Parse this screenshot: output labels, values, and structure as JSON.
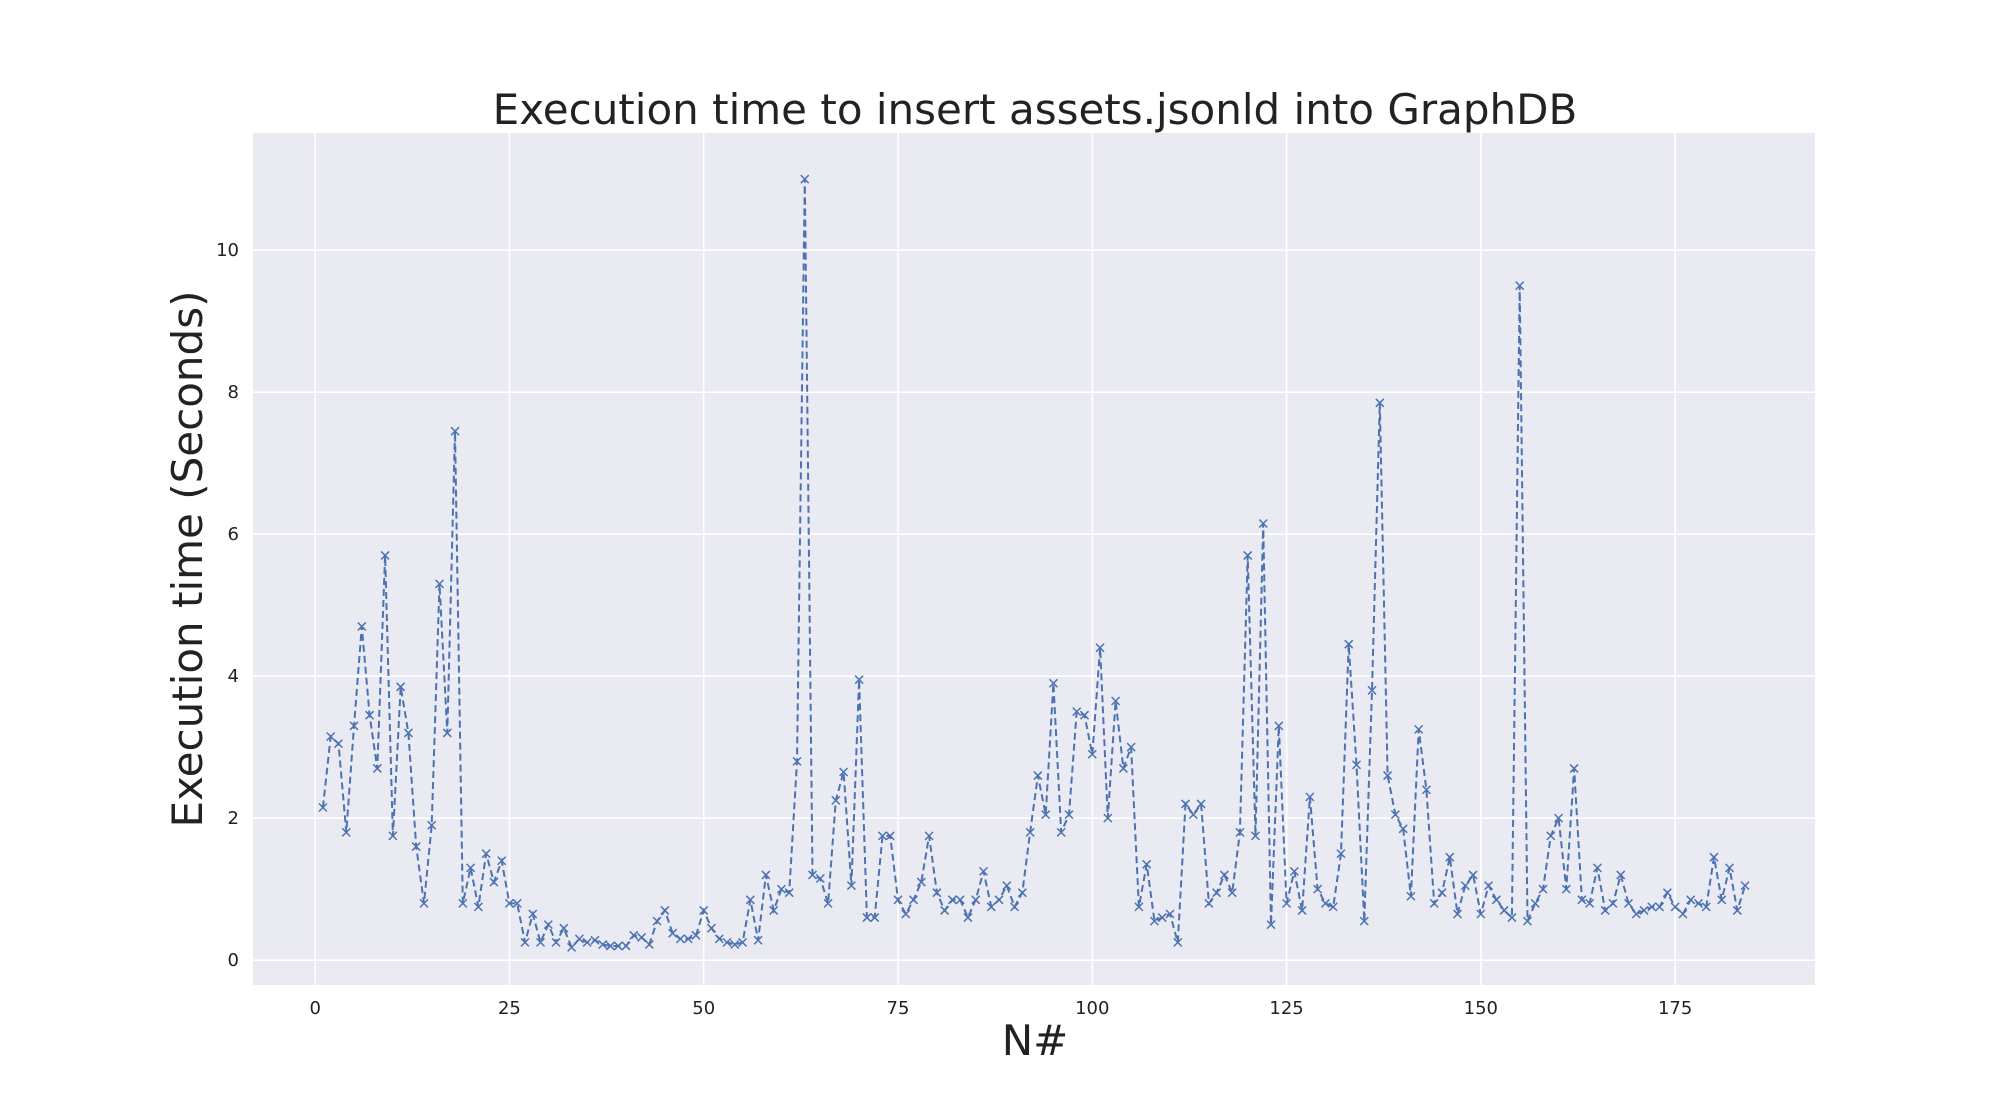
{
  "chart_data": {
    "type": "line",
    "title": "Execution time to insert assets.jsonld into GraphDB",
    "xlabel": "N#",
    "ylabel": "Execution time (Seconds)",
    "xlim": [
      -8,
      193
    ],
    "ylim": [
      -0.35,
      11.65
    ],
    "xticks": [
      0,
      25,
      50,
      75,
      100,
      125,
      150,
      175
    ],
    "yticks": [
      0,
      2,
      4,
      6,
      8,
      10
    ],
    "grid": true,
    "legend": "none",
    "line_style": "dashed",
    "marker": "x",
    "colors": {
      "series": "#4c72b0",
      "plot_background": "#eaeaf2",
      "grid": "#ffffff"
    },
    "series": [
      {
        "x": [
          1,
          2,
          3,
          4,
          5,
          6,
          7,
          8,
          9,
          10,
          11,
          12,
          13,
          14,
          15,
          16,
          17,
          18,
          19,
          20,
          21,
          22,
          23,
          24,
          25,
          26,
          27,
          28,
          29,
          30,
          31,
          32,
          33,
          34,
          35,
          36,
          37,
          38,
          39,
          40,
          41,
          42,
          43,
          44,
          45,
          46,
          47,
          48,
          49,
          50,
          51,
          52,
          53,
          54,
          55,
          56,
          57,
          58,
          59,
          60,
          61,
          62,
          63,
          64,
          65,
          66,
          67,
          68,
          69,
          70,
          71,
          72,
          73,
          74,
          75,
          76,
          77,
          78,
          79,
          80,
          81,
          82,
          83,
          84,
          85,
          86,
          87,
          88,
          89,
          90,
          91,
          92,
          93,
          94,
          95,
          96,
          97,
          98,
          99,
          100,
          101,
          102,
          103,
          104,
          105,
          106,
          107,
          108,
          109,
          110,
          111,
          112,
          113,
          114,
          115,
          116,
          117,
          118,
          119,
          120,
          121,
          122,
          123,
          124,
          125,
          126,
          127,
          128,
          129,
          130,
          131,
          132,
          133,
          134,
          135,
          136,
          137,
          138,
          139,
          140,
          141,
          142,
          143,
          144,
          145,
          146,
          147,
          148,
          149,
          150,
          151,
          152,
          153,
          154,
          155,
          156,
          157,
          158,
          159,
          160,
          161,
          162,
          163,
          164,
          165,
          166,
          167,
          168,
          169,
          170,
          171,
          172,
          173,
          174,
          175,
          176,
          177,
          178,
          179,
          180,
          181,
          182,
          183,
          184
        ],
        "y": [
          2.15,
          3.15,
          3.05,
          1.8,
          3.3,
          4.7,
          3.45,
          2.7,
          5.7,
          1.75,
          3.85,
          3.2,
          1.6,
          0.8,
          1.9,
          5.3,
          3.2,
          7.45,
          0.8,
          1.3,
          0.75,
          1.5,
          1.1,
          1.4,
          0.8,
          0.8,
          0.25,
          0.65,
          0.25,
          0.5,
          0.25,
          0.45,
          0.18,
          0.3,
          0.25,
          0.28,
          0.22,
          0.2,
          0.2,
          0.2,
          0.35,
          0.32,
          0.22,
          0.55,
          0.7,
          0.38,
          0.3,
          0.3,
          0.35,
          0.7,
          0.45,
          0.3,
          0.25,
          0.22,
          0.25,
          0.85,
          0.28,
          1.2,
          0.7,
          1.0,
          0.95,
          2.8,
          11.0,
          1.2,
          1.15,
          0.8,
          2.25,
          2.65,
          1.05,
          3.95,
          0.6,
          0.6,
          1.75,
          1.75,
          0.85,
          0.65,
          0.85,
          1.1,
          1.75,
          0.95,
          0.7,
          0.85,
          0.85,
          0.6,
          0.85,
          1.25,
          0.75,
          0.85,
          1.05,
          0.75,
          0.95,
          1.8,
          2.6,
          2.05,
          3.9,
          1.8,
          2.05,
          3.5,
          3.45,
          2.9,
          4.4,
          2.0,
          3.65,
          2.7,
          3.0,
          0.75,
          1.35,
          0.55,
          0.6,
          0.65,
          0.25,
          2.2,
          2.05,
          2.2,
          0.8,
          0.95,
          1.2,
          0.95,
          1.8,
          5.7,
          1.75,
          6.15,
          0.5,
          3.3,
          0.8,
          1.25,
          0.7,
          2.3,
          1.0,
          0.8,
          0.75,
          1.5,
          4.45,
          2.75,
          0.55,
          3.8,
          7.85,
          2.6,
          2.05,
          1.85,
          0.9,
          3.25,
          2.4,
          0.8,
          0.95,
          1.45,
          0.65,
          1.05,
          1.2,
          0.65,
          1.05,
          0.85,
          0.7,
          0.6,
          9.5,
          0.55,
          0.8,
          1.0,
          1.75,
          2.0,
          1.0,
          2.7,
          0.85,
          0.8,
          1.3,
          0.7,
          0.8,
          1.2,
          0.8,
          0.65,
          0.7,
          0.75,
          0.75,
          0.95,
          0.75,
          0.65,
          0.85,
          0.8,
          0.75,
          1.45,
          0.85,
          1.3,
          0.7,
          1.05
        ]
      }
    ]
  }
}
